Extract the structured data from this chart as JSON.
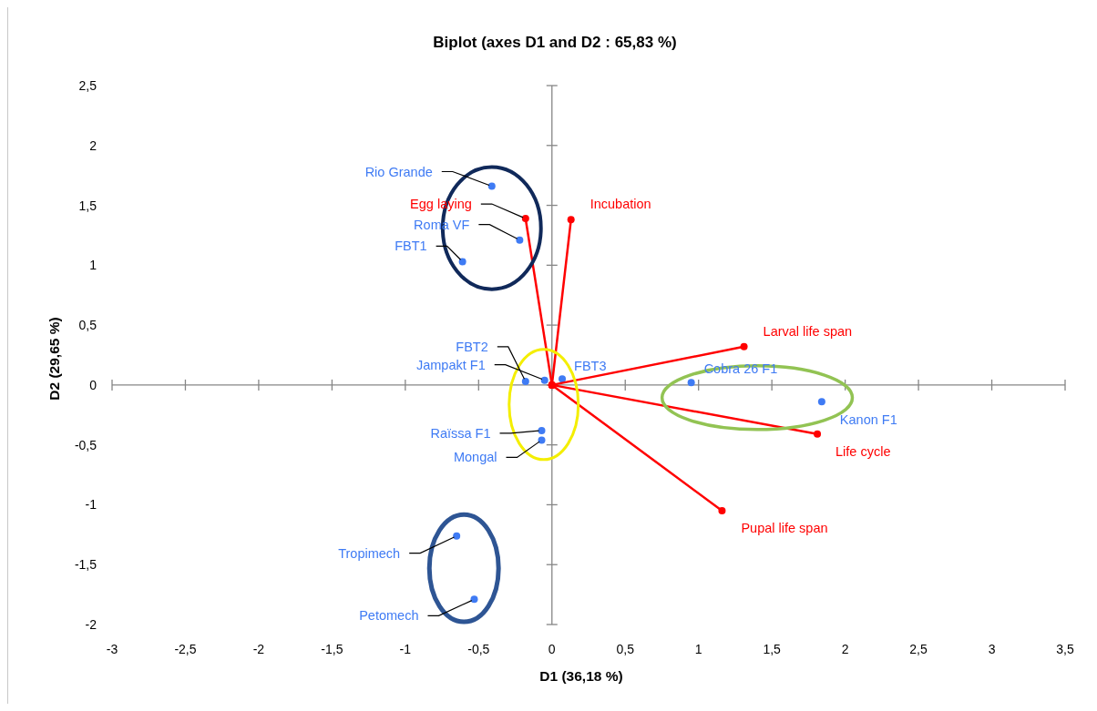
{
  "chart_data": {
    "type": "scatter",
    "title": "Biplot (axes D1 and D2 : 65,83 %)",
    "xlabel": "D1 (36,18 %)",
    "ylabel": "D2 (29,65 %)",
    "xlim": [
      -3,
      3.5
    ],
    "xticks": [
      -3,
      {
        "value": -2.5,
        "label": "-2,5"
      },
      -2,
      {
        "value": -1.5,
        "label": "-1,5"
      },
      -1,
      {
        "value": -0.5,
        "label": "-0,5"
      },
      0,
      {
        "value": 0.5,
        "label": "0,5"
      },
      1,
      {
        "value": 1.5,
        "label": "1,5"
      },
      2,
      {
        "value": 2.5,
        "label": "2,5"
      },
      3,
      {
        "value": 3.5,
        "label": "3,5"
      }
    ],
    "ylim": [
      -2,
      2.5
    ],
    "yticks": [
      -2,
      {
        "value": -1.5,
        "label": "-1,5"
      },
      -1,
      {
        "value": -0.5,
        "label": "-0,5"
      },
      0,
      {
        "value": 0.5,
        "label": "0,5"
      },
      1,
      {
        "value": 1.5,
        "label": "1,5"
      },
      2,
      {
        "value": 2.5,
        "label": "2,5"
      }
    ],
    "marker": "circle",
    "series": [
      {
        "name": "Rio Grande",
        "color": "#3f7bf4",
        "x": [
          -0.41
        ],
        "values": [
          1.66
        ]
      },
      {
        "name": "Roma VF",
        "color": "#3f7bf4",
        "x": [
          -0.22
        ],
        "values": [
          1.21
        ]
      },
      {
        "name": "FBT1",
        "color": "#3f7bf4",
        "x": [
          -0.61
        ],
        "values": [
          1.03
        ]
      },
      {
        "name": "FBT2",
        "color": "#3f7bf4",
        "x": [
          -0.18
        ],
        "values": [
          0.03
        ]
      },
      {
        "name": "Jampakt F1",
        "color": "#3f7bf4",
        "x": [
          -0.05
        ],
        "values": [
          0.04
        ]
      },
      {
        "name": "FBT3",
        "color": "#3f7bf4",
        "x": [
          0.07
        ],
        "values": [
          0.05
        ]
      },
      {
        "name": "Raïssa F1",
        "color": "#3f7bf4",
        "x": [
          -0.07
        ],
        "values": [
          -0.38
        ]
      },
      {
        "name": "Mongal",
        "color": "#3f7bf4",
        "x": [
          -0.07
        ],
        "values": [
          -0.46
        ]
      },
      {
        "name": "Cobra 26 F1",
        "color": "#3f7bf4",
        "x": [
          0.95
        ],
        "values": [
          0.02
        ]
      },
      {
        "name": "Kanon F1",
        "color": "#3f7bf4",
        "x": [
          1.84
        ],
        "values": [
          -0.14
        ]
      },
      {
        "name": "Tropimech",
        "color": "#3f7bf4",
        "x": [
          -0.65
        ],
        "values": [
          -1.26
        ]
      },
      {
        "name": "Petomech",
        "color": "#3f7bf4",
        "x": [
          -0.53
        ],
        "values": [
          -1.79
        ]
      },
      {
        "name": "Egg laying",
        "type": "line",
        "color": "#ff0000",
        "x": [
          0,
          -0.18
        ],
        "values": [
          0,
          1.39
        ]
      },
      {
        "name": "Incubation",
        "type": "line",
        "color": "#ff0000",
        "x": [
          0,
          0.13
        ],
        "values": [
          0,
          1.38
        ]
      },
      {
        "name": "Larval life span",
        "type": "line",
        "color": "#ff0000",
        "x": [
          0,
          1.31
        ],
        "values": [
          0,
          0.32
        ]
      },
      {
        "name": "Life cycle",
        "type": "line",
        "color": "#ff0000",
        "x": [
          0,
          1.81
        ],
        "values": [
          0,
          -0.41
        ]
      },
      {
        "name": "Pupal life span",
        "type": "line",
        "color": "#ff0000",
        "x": [
          0,
          1.16
        ],
        "values": [
          0,
          -1.05
        ]
      }
    ]
  }
}
